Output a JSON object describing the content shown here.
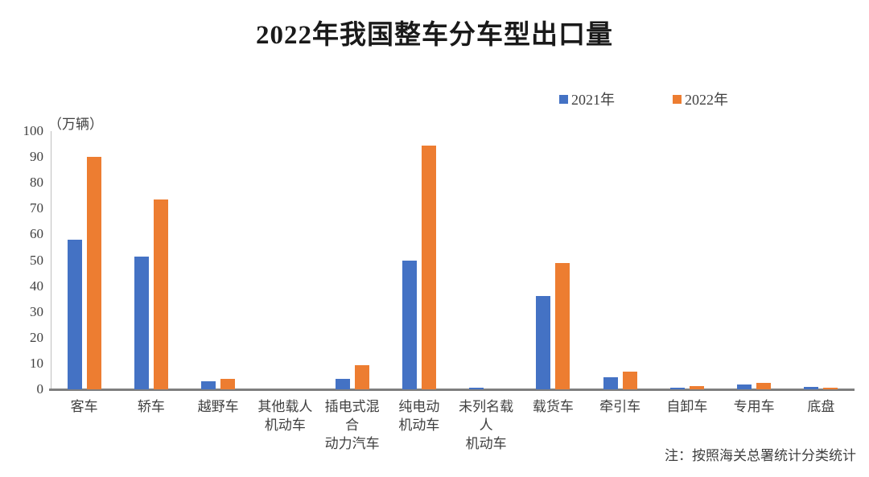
{
  "title": "2022年我国整车分车型出口量",
  "unit_label": "（万辆）",
  "footnote": "注：按照海关总署统计分类统计",
  "legend": {
    "items": [
      {
        "label": "2021年",
        "color": "#4472C4"
      },
      {
        "label": "2022年",
        "color": "#ED7D31"
      }
    ]
  },
  "chart_data": {
    "type": "bar",
    "title": "2022年我国整车分车型出口量",
    "ylabel": "（万辆）",
    "xlabel": "",
    "ylim": [
      0,
      100
    ],
    "yticks": [
      0,
      10,
      20,
      30,
      40,
      50,
      60,
      70,
      80,
      90,
      100
    ],
    "grid": false,
    "legend_position": "top-right",
    "categories": [
      "客车",
      "轿车",
      "越野车",
      "其他载人\n机动车",
      "插电式混合\n动力汽车",
      "纯电动\n机动车",
      "未列名载人\n机动车",
      "载货车",
      "牵引车",
      "自卸车",
      "专用车",
      "底盘"
    ],
    "series": [
      {
        "name": "2021年",
        "color": "#4472C4",
        "values": [
          58,
          51.5,
          3,
          0,
          4,
          50,
          0.5,
          36,
          4.7,
          0.7,
          2,
          0.9
        ]
      },
      {
        "name": "2022年",
        "color": "#ED7D31",
        "values": [
          90,
          73.5,
          4,
          0,
          9.3,
          94.5,
          0,
          49,
          6.8,
          1.1,
          2.5,
          0.6
        ]
      }
    ]
  }
}
